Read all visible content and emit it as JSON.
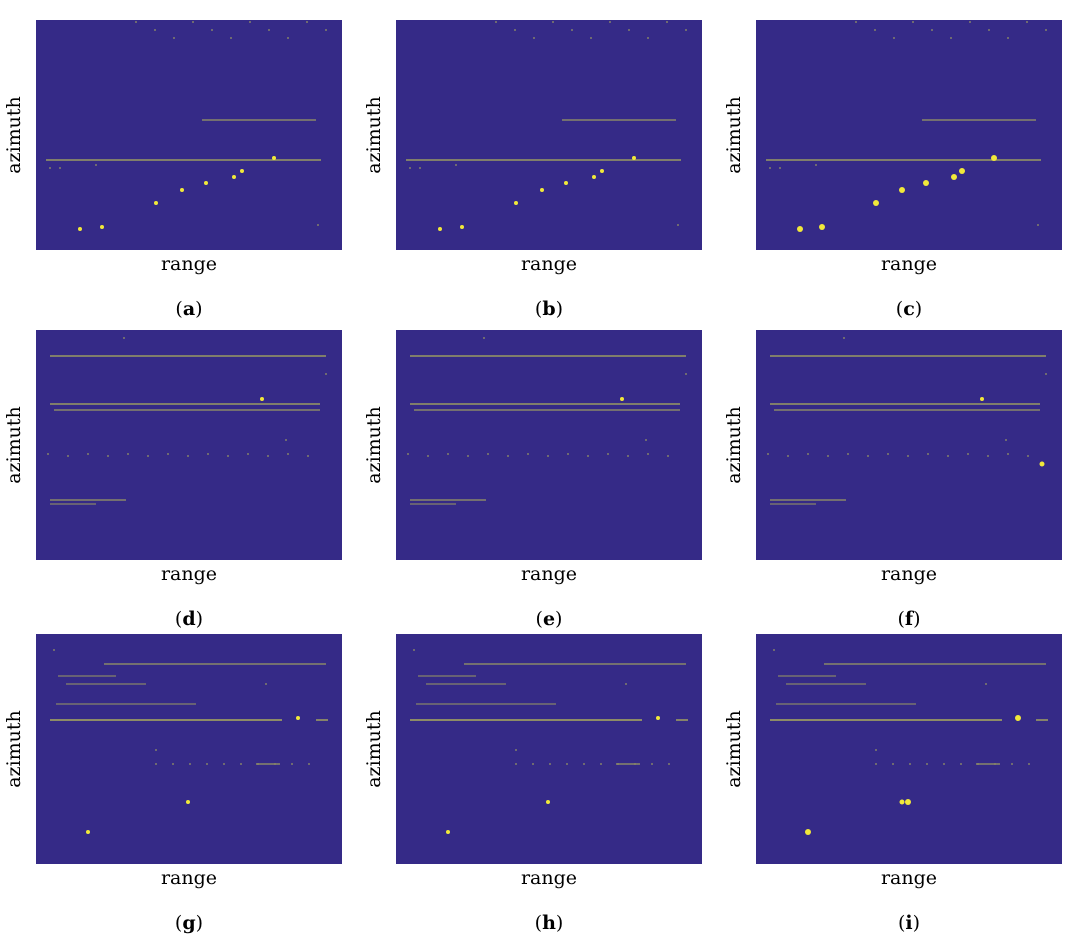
{
  "axes": {
    "ylabel": "azimuth",
    "xlabel": "range"
  },
  "colors": {
    "background": "#352a87",
    "line": "#9a9a62",
    "target": "#f1e83a"
  },
  "panels": [
    {
      "id": "a",
      "label": "a"
    },
    {
      "id": "b",
      "label": "b"
    },
    {
      "id": "c",
      "label": "c"
    },
    {
      "id": "d",
      "label": "d"
    },
    {
      "id": "e",
      "label": "e"
    },
    {
      "id": "f",
      "label": "f"
    },
    {
      "id": "g",
      "label": "g"
    },
    {
      "id": "h",
      "label": "h"
    },
    {
      "id": "i",
      "label": "i"
    }
  ]
}
